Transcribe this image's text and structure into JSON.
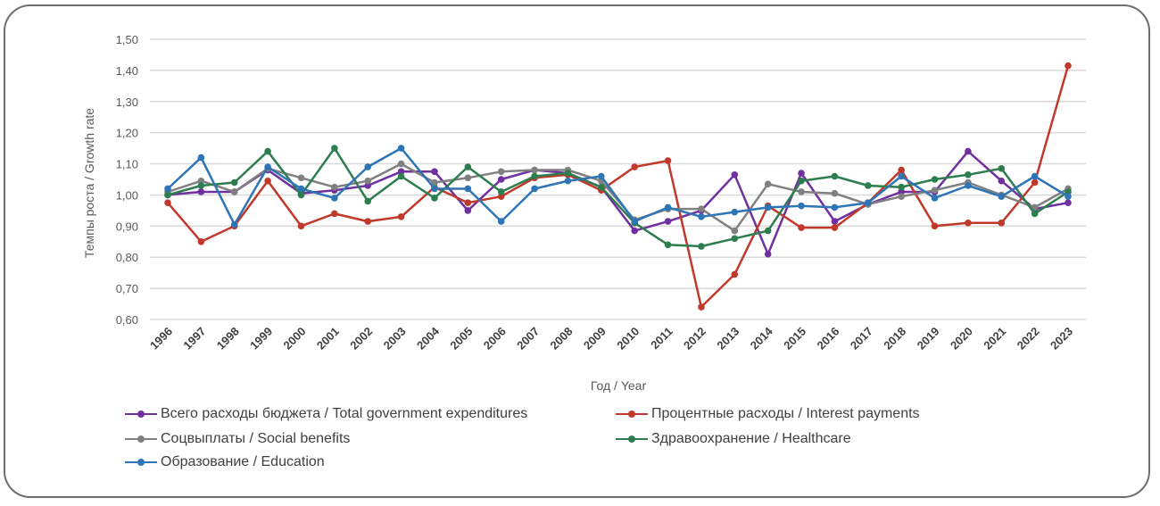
{
  "chart_data": {
    "type": "line",
    "title": "",
    "xlabel": "Год / Year",
    "ylabel": "Темпы роста / Growth rate",
    "ylim": [
      0.6,
      1.5
    ],
    "y_ticks": [
      "0,60",
      "0,70",
      "0,80",
      "0,90",
      "1,00",
      "1,10",
      "1,20",
      "1,30",
      "1,40",
      "1,50"
    ],
    "y_tick_values": [
      0.6,
      0.7,
      0.8,
      0.9,
      1.0,
      1.1,
      1.2,
      1.3,
      1.4,
      1.5
    ],
    "grid": true,
    "legend_position": "bottom",
    "categories": [
      "1996",
      "1997",
      "1998",
      "1999",
      "2000",
      "2001",
      "2002",
      "2003",
      "2004",
      "2005",
      "2006",
      "2007",
      "2008",
      "2009",
      "2010",
      "2011",
      "2012",
      "2013",
      "2014",
      "2015",
      "2016",
      "2017",
      "2018",
      "2019",
      "2020",
      "2021",
      "2022",
      "2023"
    ],
    "series": [
      {
        "name": "Всего расходы бюджета / Total government expenditures",
        "color": "#7030a0",
        "values": [
          1.0,
          1.01,
          1.01,
          1.08,
          1.005,
          1.015,
          1.03,
          1.075,
          1.075,
          0.95,
          1.05,
          1.08,
          1.07,
          1.025,
          0.885,
          0.915,
          0.95,
          1.065,
          0.81,
          1.07,
          0.915,
          0.97,
          1.01,
          1.01,
          1.14,
          1.045,
          0.955,
          0.975
        ]
      },
      {
        "name": "Процентные расходы / Interest payments",
        "color": "#c0392b",
        "values": [
          0.975,
          0.85,
          0.9,
          1.045,
          0.9,
          0.94,
          0.915,
          0.93,
          1.025,
          0.975,
          0.995,
          1.055,
          1.065,
          1.015,
          1.09,
          1.11,
          0.64,
          0.745,
          0.965,
          0.895,
          0.895,
          0.975,
          1.08,
          0.9,
          0.91,
          0.91,
          1.04,
          1.415
        ]
      },
      {
        "name": "Соцвыплаты / Social benefits",
        "color": "#808080",
        "values": [
          1.01,
          1.045,
          1.01,
          1.085,
          1.055,
          1.025,
          1.045,
          1.1,
          1.04,
          1.055,
          1.075,
          1.08,
          1.08,
          1.045,
          0.92,
          0.955,
          0.955,
          0.885,
          1.035,
          1.01,
          1.005,
          0.97,
          0.995,
          1.015,
          1.04,
          1.0,
          0.96,
          1.02
        ]
      },
      {
        "name": "Здравоохранение / Healthcare",
        "color": "#2e7d4f",
        "values": [
          1.0,
          1.03,
          1.04,
          1.14,
          1.0,
          1.15,
          0.98,
          1.06,
          0.99,
          1.09,
          1.01,
          1.06,
          1.07,
          1.025,
          0.91,
          0.84,
          0.835,
          0.86,
          0.885,
          1.045,
          1.06,
          1.03,
          1.025,
          1.05,
          1.065,
          1.085,
          0.94,
          1.01
        ]
      },
      {
        "name": "Образование / Education",
        "color": "#2e75b6",
        "values": [
          1.02,
          1.12,
          0.905,
          1.09,
          1.02,
          0.99,
          1.09,
          1.15,
          1.02,
          1.02,
          0.915,
          1.02,
          1.045,
          1.06,
          0.915,
          0.96,
          0.93,
          0.945,
          0.96,
          0.965,
          0.96,
          0.975,
          1.06,
          0.99,
          1.03,
          0.995,
          1.06,
          0.995
        ]
      }
    ]
  }
}
